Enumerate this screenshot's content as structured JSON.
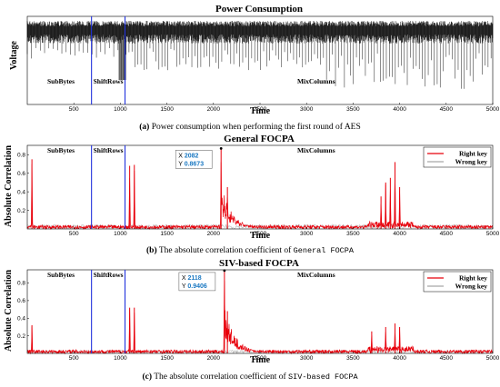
{
  "colors": {
    "right_key": "#e8000b",
    "wrong_key": "#a6a6a6",
    "trace": "#000000",
    "divider": "#2233dd",
    "tip_value": "#1a78c2"
  },
  "chart_data": [
    {
      "type": "line",
      "title": "Power Consumption",
      "xlabel": "Time",
      "ylabel": "Voltage",
      "xlim": [
        0,
        5000
      ],
      "xticks": [
        500,
        1000,
        1500,
        2000,
        2500,
        3000,
        3500,
        4000,
        4500,
        5000
      ],
      "yticks": [],
      "segments": [
        "SubBytes",
        "ShiftRows",
        "MixColumns"
      ],
      "segment_boundaries": [
        690,
        1050
      ],
      "series": [
        {
          "values_description": "",
          "envelope": {
            "baseline": 0.8,
            "dip_min": 0.35
          }
        }
      ],
      "caption_label": "(a)",
      "caption": "Power consumption when performing the first round of AES"
    },
    {
      "type": "line",
      "title": "General FOCPA",
      "xlabel": "Time",
      "ylabel": "Absolute Correlation",
      "xlim": [
        0,
        5000
      ],
      "ylim": [
        0,
        0.9
      ],
      "xticks": [
        500,
        1000,
        1500,
        2000,
        2500,
        3000,
        3500,
        4000,
        4500,
        5000
      ],
      "yticks": [
        0.2,
        0.4,
        0.6,
        0.8
      ],
      "segments": [
        "SubBytes",
        "ShiftRows",
        "MixColumns"
      ],
      "segment_boundaries": [
        690,
        1050
      ],
      "series": [
        {
          "name": "Right key",
          "peaks": [
            [
              50,
              0.75
            ],
            [
              1100,
              0.68
            ],
            [
              1150,
              0.69
            ],
            [
              2082,
              0.8673
            ],
            [
              2150,
              0.45
            ],
            [
              3800,
              0.35
            ],
            [
              3850,
              0.5
            ],
            [
              3900,
              0.55
            ],
            [
              3950,
              0.72
            ],
            [
              4000,
              0.45
            ]
          ]
        },
        {
          "name": "Wrong key",
          "level": 0.05
        }
      ],
      "datatip": {
        "x_label": "X",
        "x": "2082",
        "y_label": "Y",
        "y": "0.8673"
      },
      "caption_label": "(b)",
      "caption_pre": "The absolute correlation coefficient of",
      "caption_code": "General FOCPA"
    },
    {
      "type": "line",
      "title": "SIV-based FOCPA",
      "xlabel": "Time",
      "ylabel": "Absolute Correlation",
      "xlim": [
        0,
        5000
      ],
      "ylim": [
        0,
        0.95
      ],
      "xticks": [
        500,
        1000,
        1500,
        2000,
        2500,
        3000,
        3500,
        4000,
        4500,
        5000
      ],
      "yticks": [
        0.2,
        0.4,
        0.6,
        0.8
      ],
      "segments": [
        "SubBytes",
        "ShiftRows",
        "MixColumns"
      ],
      "segment_boundaries": [
        690,
        1050
      ],
      "series": [
        {
          "name": "Right key",
          "peaks": [
            [
              50,
              0.32
            ],
            [
              1100,
              0.52
            ],
            [
              1150,
              0.52
            ],
            [
              2118,
              0.9406
            ],
            [
              2150,
              0.48
            ],
            [
              3700,
              0.25
            ],
            [
              3850,
              0.3
            ],
            [
              3950,
              0.34
            ],
            [
              4000,
              0.3
            ]
          ]
        },
        {
          "name": "Wrong key",
          "level": 0.04
        }
      ],
      "datatip": {
        "x_label": "X",
        "x": "2118",
        "y_label": "Y",
        "y": "0.9406"
      },
      "caption_label": "(c)",
      "caption_pre": "The absolute correlation coefficient of",
      "caption_code": "SIV-based FOCPA"
    }
  ]
}
